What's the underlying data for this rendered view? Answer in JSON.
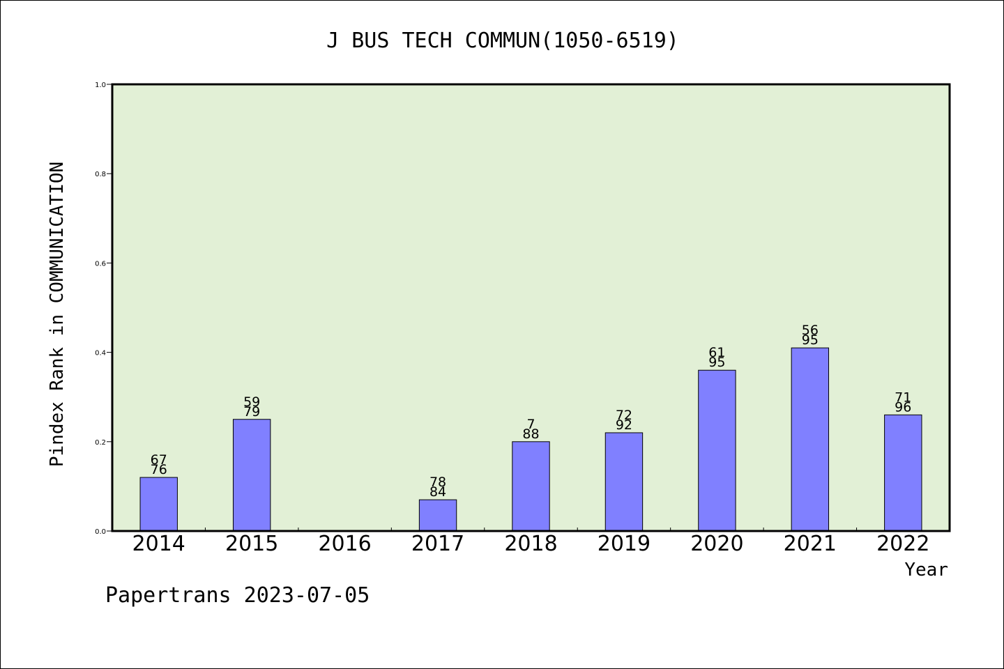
{
  "chart_data": {
    "type": "bar",
    "title": "J BUS TECH COMMUN(1050-6519)",
    "xlabel": "Year",
    "ylabel": "Pindex Rank in COMMUNICATION",
    "footer": "Papertrans 2023-07-05",
    "categories": [
      "2014",
      "2015",
      "2016",
      "2017",
      "2018",
      "2019",
      "2020",
      "2021",
      "2022"
    ],
    "values": [
      0.12,
      0.25,
      0.0,
      0.07,
      0.2,
      0.22,
      0.36,
      0.41,
      0.26
    ],
    "label_top": [
      "67",
      "59",
      "",
      "78",
      "7",
      "72",
      "61",
      "56",
      "71"
    ],
    "label_bottom": [
      "76",
      "79",
      "",
      "84",
      "88",
      "92",
      "95",
      "95",
      "96"
    ],
    "ylim": [
      0,
      1.0
    ],
    "yticks": [
      "0.0",
      "0.2",
      "0.4",
      "0.6",
      "0.8",
      "1.0"
    ],
    "ytick_values": [
      0,
      0.2,
      0.4,
      0.6,
      0.8,
      1.0
    ],
    "grid": false,
    "colors": {
      "plot_background": "#e2f0d6",
      "bar_fill": "#8080ff",
      "bar_stroke": "#000000"
    }
  }
}
